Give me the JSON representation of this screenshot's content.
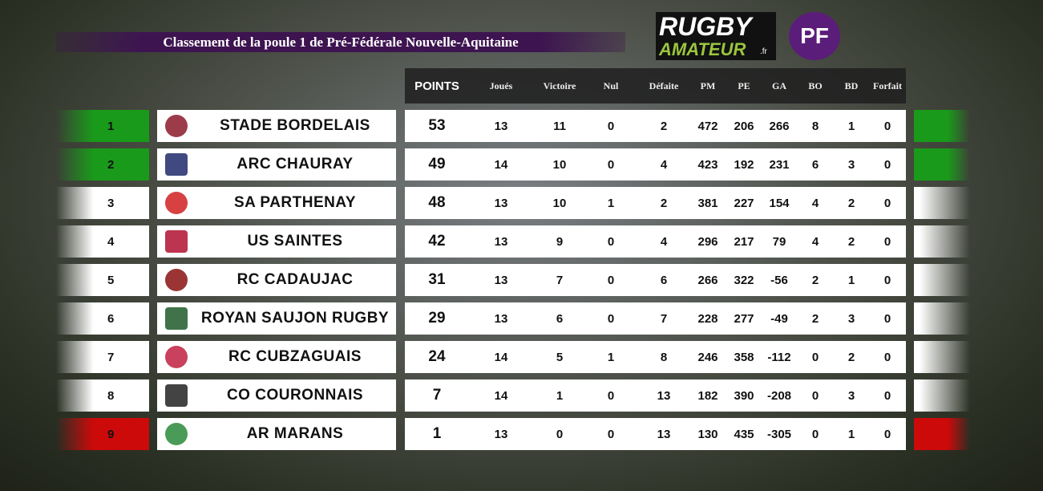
{
  "header": {
    "title": "Classement de la poule 1 de Pré-Fédérale Nouvelle-Aquitaine",
    "logo": {
      "line1": "RUGBY",
      "line2": "AMATEUR",
      "suffix": ".fr",
      "badge": "PF"
    }
  },
  "table": {
    "columns": [
      "POINTS",
      "Joués",
      "Victoire",
      "Nul",
      "Défaite",
      "PM",
      "PE",
      "GA",
      "BO",
      "BD",
      "Forfait"
    ],
    "rows": [
      {
        "rank": 1,
        "team": "STADE BORDELAIS",
        "values": [
          53,
          13,
          11,
          0,
          2,
          472,
          206,
          266,
          8,
          1,
          0
        ]
      },
      {
        "rank": 2,
        "team": "ARC CHAURAY",
        "values": [
          49,
          14,
          10,
          0,
          4,
          423,
          192,
          231,
          6,
          3,
          0
        ]
      },
      {
        "rank": 3,
        "team": "SA PARTHENAY",
        "values": [
          48,
          13,
          10,
          1,
          2,
          381,
          227,
          154,
          4,
          2,
          0
        ]
      },
      {
        "rank": 4,
        "team": "US SAINTES",
        "values": [
          42,
          13,
          9,
          0,
          4,
          296,
          217,
          79,
          4,
          2,
          0
        ]
      },
      {
        "rank": 5,
        "team": "RC CADAUJAC",
        "values": [
          31,
          13,
          7,
          0,
          6,
          266,
          322,
          -56,
          2,
          1,
          0
        ]
      },
      {
        "rank": 6,
        "team": "ROYAN SAUJON RUGBY",
        "values": [
          29,
          13,
          6,
          0,
          7,
          228,
          277,
          -49,
          2,
          3,
          0
        ]
      },
      {
        "rank": 7,
        "team": "RC CUBZAGUAIS",
        "values": [
          24,
          14,
          5,
          1,
          8,
          246,
          358,
          -112,
          0,
          2,
          0
        ]
      },
      {
        "rank": 8,
        "team": "CO COURONNAIS",
        "values": [
          7,
          14,
          1,
          0,
          13,
          182,
          390,
          -208,
          0,
          3,
          0
        ]
      },
      {
        "rank": 9,
        "team": "AR MARANS",
        "values": [
          1,
          13,
          0,
          0,
          13,
          130,
          435,
          -305,
          0,
          1,
          0
        ]
      }
    ]
  }
}
